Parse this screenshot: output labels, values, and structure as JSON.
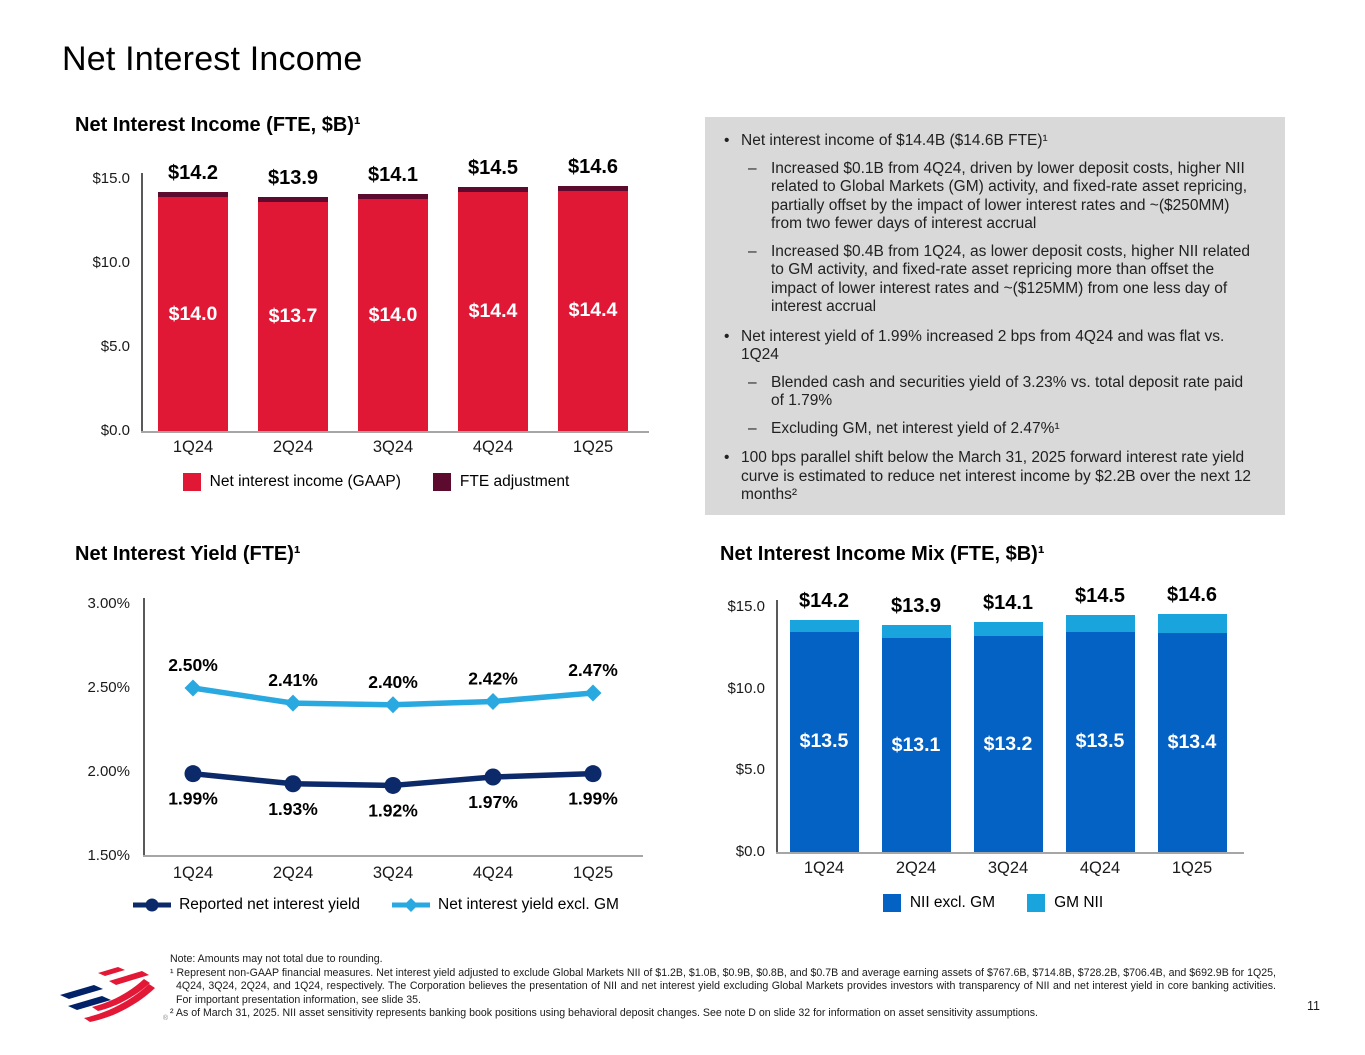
{
  "slide": {
    "title": "Net Interest Income",
    "page_number": "11"
  },
  "palette": {
    "commentary_bg": "#D9D9D9",
    "logo_navy": "#012169",
    "logo_red": "#E31837"
  },
  "chart_data": [
    {
      "id": "net-interest-income-fte",
      "type": "bar",
      "title": "Net Interest Income (FTE, $B)¹",
      "categories": [
        "1Q24",
        "2Q24",
        "3Q24",
        "4Q24",
        "1Q25"
      ],
      "series": [
        {
          "name": "Net interest income (GAAP)",
          "color": "#E01836",
          "values": [
            14.0,
            13.7,
            14.0,
            14.4,
            14.4
          ],
          "labels": [
            "$14.0",
            "$13.7",
            "$14.0",
            "$14.4",
            "$14.4"
          ]
        },
        {
          "name": "FTE adjustment",
          "color": "#5C0A2D",
          "values": [
            0.2,
            0.2,
            0.1,
            0.1,
            0.2
          ]
        }
      ],
      "totals": {
        "values": [
          14.2,
          13.9,
          14.1,
          14.5,
          14.6
        ],
        "labels": [
          "$14.2",
          "$13.9",
          "$14.1",
          "$14.5",
          "$14.6"
        ]
      },
      "ylim": [
        0,
        15
      ],
      "y_ticks": [
        {
          "label": "$15.0",
          "value": 15
        },
        {
          "label": "$10.0",
          "value": 10
        },
        {
          "label": "$5.0",
          "value": 5
        },
        {
          "label": "$0.0",
          "value": 0
        }
      ],
      "grid": false,
      "legend_position": "bottom"
    },
    {
      "id": "net-interest-yield-fte",
      "type": "line",
      "title": "Net Interest Yield (FTE)¹",
      "categories": [
        "1Q24",
        "2Q24",
        "3Q24",
        "4Q24",
        "1Q25"
      ],
      "series": [
        {
          "name": "Reported net interest yield",
          "color": "#0C2969",
          "marker": "circle",
          "label_side": "below",
          "values": [
            1.99,
            1.93,
            1.92,
            1.97,
            1.99
          ],
          "labels": [
            "1.99%",
            "1.93%",
            "1.92%",
            "1.97%",
            "1.99%"
          ]
        },
        {
          "name": "Net interest yield excl. GM",
          "color": "#2AA9E0",
          "marker": "diamond",
          "label_side": "above",
          "values": [
            2.5,
            2.41,
            2.4,
            2.42,
            2.47
          ],
          "labels": [
            "2.50%",
            "2.41%",
            "2.40%",
            "2.42%",
            "2.47%"
          ]
        }
      ],
      "ylim": [
        1.5,
        3.0
      ],
      "y_ticks": [
        {
          "label": "3.00%",
          "value": 3.0
        },
        {
          "label": "2.50%",
          "value": 2.5
        },
        {
          "label": "2.00%",
          "value": 2.0
        },
        {
          "label": "1.50%",
          "value": 1.5
        }
      ],
      "grid": false,
      "legend_position": "bottom"
    },
    {
      "id": "net-interest-income-mix-fte",
      "type": "bar",
      "title": "Net Interest Income Mix (FTE, $B)¹",
      "categories": [
        "1Q24",
        "2Q24",
        "3Q24",
        "4Q24",
        "1Q25"
      ],
      "series": [
        {
          "name": "NII excl. GM",
          "color": "#0462C5",
          "values": [
            13.5,
            13.1,
            13.2,
            13.5,
            13.4
          ],
          "labels": [
            "$13.5",
            "$13.1",
            "$13.2",
            "$13.5",
            "$13.4"
          ]
        },
        {
          "name": "GM NII",
          "color": "#1AA4DD",
          "values": [
            0.7,
            0.8,
            0.9,
            1.0,
            1.2
          ]
        }
      ],
      "totals": {
        "values": [
          14.2,
          13.9,
          14.1,
          14.5,
          14.6
        ],
        "labels": [
          "$14.2",
          "$13.9",
          "$14.1",
          "$14.5",
          "$14.6"
        ]
      },
      "ylim": [
        0,
        15
      ],
      "y_ticks": [
        {
          "label": "$15.0",
          "value": 15
        },
        {
          "label": "$10.0",
          "value": 10
        },
        {
          "label": "$5.0",
          "value": 5
        },
        {
          "label": "$0.0",
          "value": 0
        }
      ],
      "grid": false,
      "legend_position": "bottom"
    }
  ],
  "commentary": {
    "items": [
      {
        "marker": "•",
        "text": "Net interest income of $14.4B ($14.6B FTE)¹"
      },
      {
        "marker": "–",
        "text": "Increased $0.1B from 4Q24, driven by lower deposit costs, higher NII related to Global Markets (GM) activity, and fixed-rate asset repricing, partially offset by the impact of lower interest rates and ~($250MM) from two fewer days of interest accrual"
      },
      {
        "marker": "–",
        "text": "Increased $0.4B from 1Q24, as lower deposit costs, higher NII related to GM activity, and fixed-rate asset repricing more than offset the impact of lower interest rates and ~($125MM) from one less day of interest accrual"
      },
      {
        "marker": "•",
        "text": "Net interest yield of 1.99% increased 2 bps from 4Q24 and was flat vs. 1Q24"
      },
      {
        "marker": "–",
        "text": "Blended cash and securities yield of 3.23% vs. total deposit rate paid of 1.79%"
      },
      {
        "marker": "–",
        "text": "Excluding GM, net interest yield of 2.47%¹"
      },
      {
        "marker": "•",
        "text": "100 bps parallel shift below the March 31, 2025 forward interest rate yield curve is estimated to reduce net interest income by $2.2B over the next 12 months²"
      }
    ]
  },
  "footnotes": {
    "note": "Note: Amounts may not total due to rounding.",
    "fn1": "¹ Represent non-GAAP financial measures. Net interest yield adjusted to exclude Global Markets NII of $1.2B, $1.0B, $0.9B, $0.8B, and $0.7B and average earning assets of $767.6B, $714.8B, $728.2B, $706.4B, and $692.9B for 1Q25, 4Q24, 3Q24, 2Q24, and 1Q24, respectively. The Corporation believes the presentation of NII and net interest yield excluding Global Markets provides investors with transparency of NII and net interest yield in core banking activities. For important presentation information, see slide 35.",
    "fn2": "² As of March 31, 2025. NII asset sensitivity represents banking book positions using behavioral deposit changes. See note D on slide 32 for information on asset sensitivity assumptions."
  }
}
